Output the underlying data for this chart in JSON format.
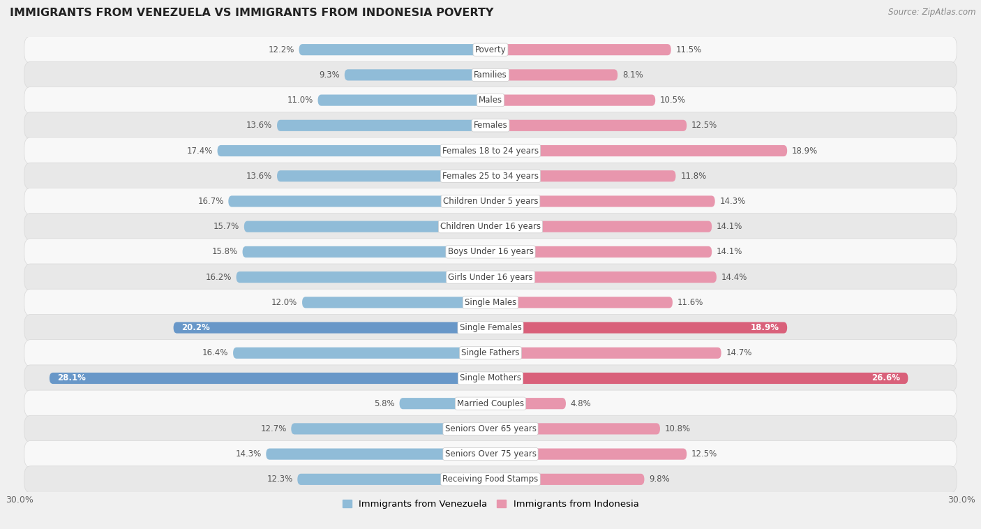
{
  "title": "IMMIGRANTS FROM VENEZUELA VS IMMIGRANTS FROM INDONESIA POVERTY",
  "source": "Source: ZipAtlas.com",
  "categories": [
    "Poverty",
    "Families",
    "Males",
    "Females",
    "Females 18 to 24 years",
    "Females 25 to 34 years",
    "Children Under 5 years",
    "Children Under 16 years",
    "Boys Under 16 years",
    "Girls Under 16 years",
    "Single Males",
    "Single Females",
    "Single Fathers",
    "Single Mothers",
    "Married Couples",
    "Seniors Over 65 years",
    "Seniors Over 75 years",
    "Receiving Food Stamps"
  ],
  "venezuela_values": [
    12.2,
    9.3,
    11.0,
    13.6,
    17.4,
    13.6,
    16.7,
    15.7,
    15.8,
    16.2,
    12.0,
    20.2,
    16.4,
    28.1,
    5.8,
    12.7,
    14.3,
    12.3
  ],
  "indonesia_values": [
    11.5,
    8.1,
    10.5,
    12.5,
    18.9,
    11.8,
    14.3,
    14.1,
    14.1,
    14.4,
    11.6,
    18.9,
    14.7,
    26.6,
    4.8,
    10.8,
    12.5,
    9.8
  ],
  "venezuela_color": "#90bcd8",
  "indonesia_color": "#e896ad",
  "venezuela_highlight_color": "#6897c8",
  "indonesia_highlight_color": "#d9607a",
  "highlight_rows": [
    11,
    13
  ],
  "max_value": 30.0,
  "background_color": "#f0f0f0",
  "row_light_color": "#f8f8f8",
  "row_dark_color": "#e8e8e8",
  "row_outline_color": "#d8d8d8",
  "legend_venezuela": "Immigrants from Venezuela",
  "legend_indonesia": "Immigrants from Indonesia",
  "label_color_normal": "#555555",
  "label_color_highlight": "#ffffff",
  "cat_label_color": "#444444",
  "title_color": "#222222",
  "source_color": "#888888"
}
